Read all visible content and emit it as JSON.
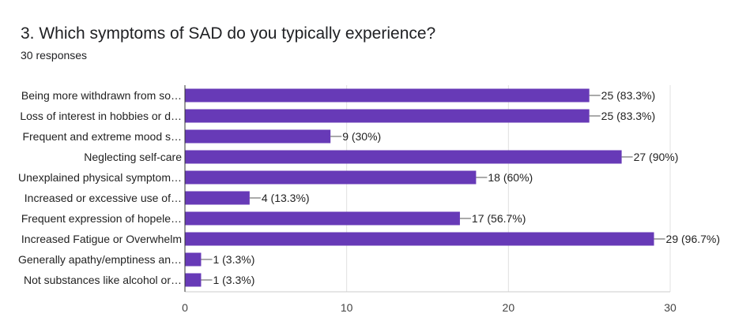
{
  "header": {
    "title": "3. Which symptoms of SAD do you typically experience?",
    "responses": "30 responses"
  },
  "chart_data": {
    "type": "bar",
    "orientation": "horizontal",
    "categories": [
      "Being more withdrawn from so…",
      "Loss of interest in hobbies or d…",
      "Frequent and extreme mood s…",
      "Neglecting self-care",
      "Unexplained physical symptom…",
      "Increased or excessive use of…",
      "Frequent expression of hopele…",
      "Increased Fatigue or Overwhelm",
      "Generally apathy/emptiness an…",
      "Not substances like alcohol or…"
    ],
    "values": [
      25,
      25,
      9,
      27,
      18,
      4,
      17,
      29,
      1,
      1
    ],
    "value_labels": [
      "25 (83.3%)",
      "25 (83.3%)",
      "9 (30%)",
      "27 (90%)",
      "18 (60%)",
      "4 (13.3%)",
      "17 (56.7%)",
      "29 (96.7%)",
      "1 (3.3%)",
      "1 (3.3%)"
    ],
    "xlim": [
      0,
      30
    ],
    "xticks": [
      0,
      10,
      20,
      30
    ],
    "grid": true,
    "bar_color": "#673ab7"
  }
}
